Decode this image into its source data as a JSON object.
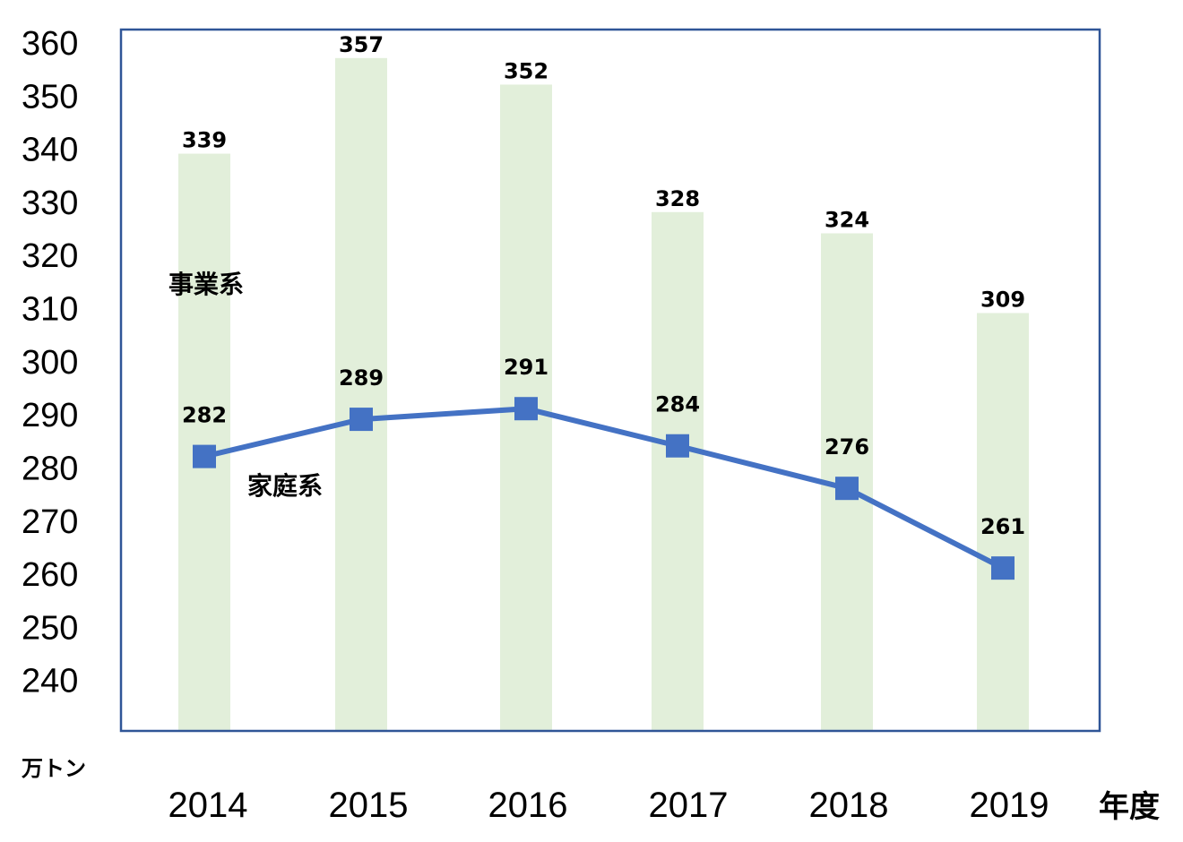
{
  "chart_data": {
    "type": "bar+line",
    "categories": [
      "2014",
      "2015",
      "2016",
      "2017",
      "2018",
      "2019"
    ],
    "series": [
      {
        "name": "事業系",
        "type": "bar",
        "values": [
          339,
          357,
          352,
          328,
          324,
          309
        ],
        "color": "#e2efda"
      },
      {
        "name": "家庭系",
        "type": "line",
        "values": [
          282,
          289,
          291,
          284,
          276,
          261
        ],
        "color": "#4472c4"
      }
    ],
    "ylim": [
      230,
      360
    ],
    "yticks": [
      "360",
      "350",
      "340",
      "330",
      "320",
      "310",
      "300",
      "290",
      "280",
      "270",
      "260",
      "250",
      "240"
    ],
    "ylabel": "万トン",
    "xlabel": "年度",
    "frame_color": "#2f5597",
    "grid": false
  }
}
